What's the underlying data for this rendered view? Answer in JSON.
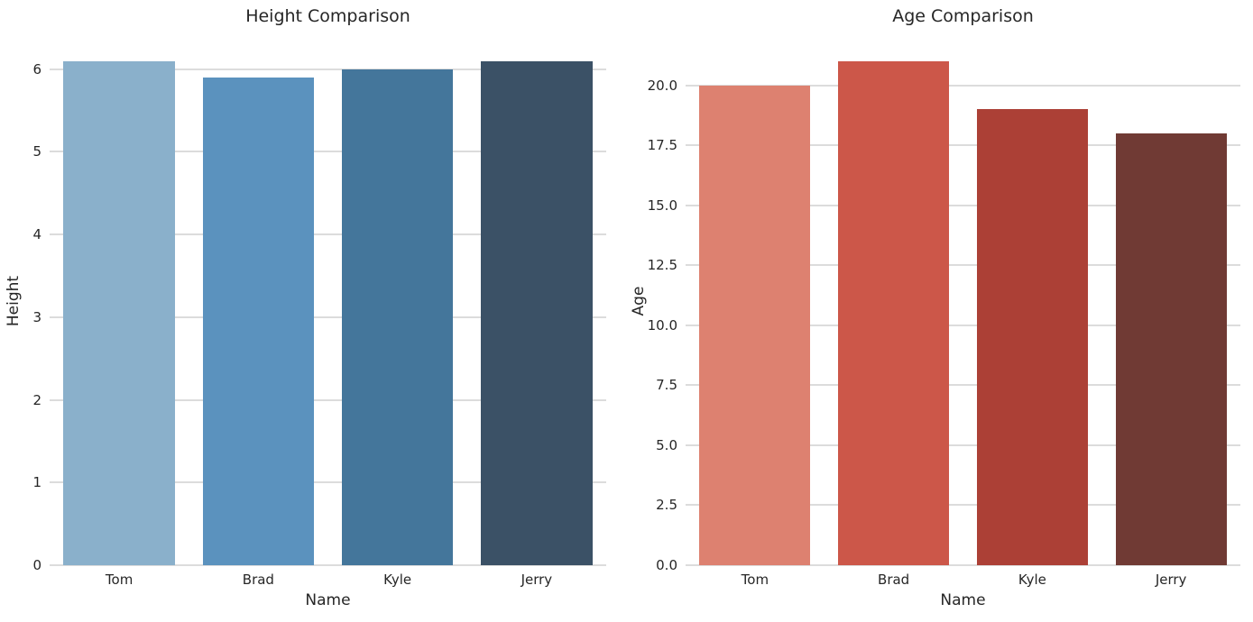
{
  "figure": {
    "background_color": "#ffffff",
    "text_color": "#262626",
    "grid_color": "#dcdcdc"
  },
  "chart_data": [
    {
      "type": "bar",
      "title": "Height Comparison",
      "xlabel": "Name",
      "ylabel": "Height",
      "categories": [
        "Tom",
        "Brad",
        "Kyle",
        "Jerry"
      ],
      "values": [
        6.1,
        5.9,
        6.0,
        6.1
      ],
      "bar_colors": [
        "#8ab0cb",
        "#5b92be",
        "#44769b",
        "#3b5166"
      ],
      "yticks": [
        0,
        1,
        2,
        3,
        4,
        5,
        6
      ],
      "ytick_labels": [
        "0",
        "1",
        "2",
        "3",
        "4",
        "5",
        "6"
      ],
      "ylim": [
        0,
        6.4
      ],
      "grid": true,
      "legend": "none"
    },
    {
      "type": "bar",
      "title": "Age Comparison",
      "xlabel": "Name",
      "ylabel": "Age",
      "categories": [
        "Tom",
        "Brad",
        "Kyle",
        "Jerry"
      ],
      "values": [
        20,
        21,
        19,
        18
      ],
      "bar_colors": [
        "#dd8170",
        "#cc5749",
        "#ac4036",
        "#703a34"
      ],
      "yticks": [
        0,
        2.5,
        5,
        7.5,
        10,
        12.5,
        15,
        17.5,
        20
      ],
      "ytick_labels": [
        "0.0",
        "2.5",
        "5.0",
        "7.5",
        "10.0",
        "12.5",
        "15.0",
        "17.5",
        "20.0"
      ],
      "ylim": [
        0,
        22.05
      ],
      "grid": true,
      "legend": "none"
    }
  ]
}
